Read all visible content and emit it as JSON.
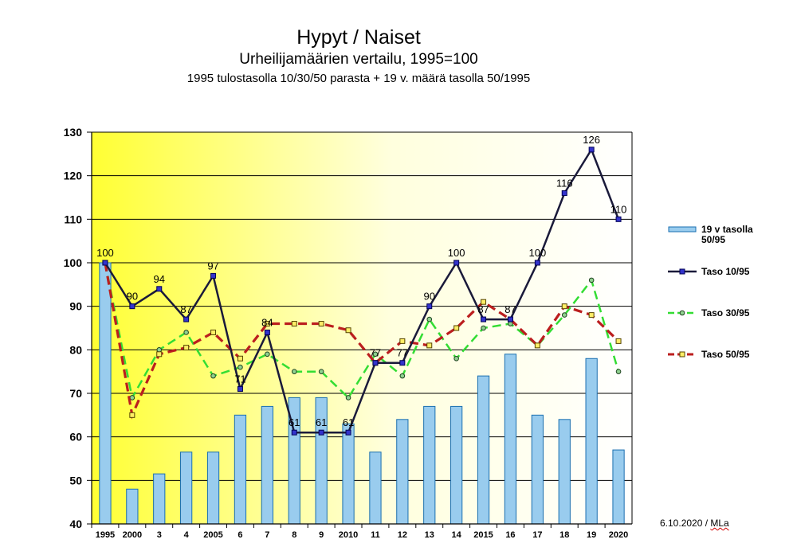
{
  "header": {
    "title": "Hypyt / Naiset",
    "subtitle": "Urheilijamäärien vertailu, 1995=100",
    "subtitle2": "1995 tulostasolla 10/30/50 parasta + 19 v. määrä tasolla 50/1995"
  },
  "footer": {
    "date": "6.10.2020 / ",
    "author": "MLa"
  },
  "colors": {
    "bar_fill": "#99ccee",
    "bar_stroke": "#1a6fb0",
    "taso10": "#1a1a3a",
    "taso10_marker": "#3333cc",
    "taso30": "#33dd33",
    "taso30_marker": "#8fd18f",
    "taso50": "#bb1e1e",
    "taso50_marker": "#ffee66"
  },
  "chart_data": {
    "type": "bar",
    "title": "Hypyt / Naiset",
    "categories": [
      "1995",
      "2000",
      "3",
      "4",
      "2005",
      "6",
      "7",
      "8",
      "9",
      "2010",
      "11",
      "12",
      "13",
      "14",
      "2015",
      "16",
      "17",
      "18",
      "19",
      "2020"
    ],
    "ylim": [
      40,
      130
    ],
    "yticks": [
      40,
      50,
      60,
      70,
      80,
      90,
      100,
      110,
      120,
      130
    ],
    "grid": true,
    "legend_position": "right",
    "series": [
      {
        "name": "19 v tasolla 50/95",
        "type": "bar",
        "values": [
          100,
          48,
          51.5,
          56.5,
          56.5,
          65,
          67,
          69,
          69,
          63,
          56.5,
          64,
          67,
          67,
          74,
          79,
          65,
          64,
          78,
          57
        ]
      },
      {
        "name": "Taso 10/95",
        "type": "line",
        "style": "solid",
        "values": [
          100,
          90,
          94,
          87,
          97,
          71,
          84,
          61,
          61,
          61,
          77,
          77,
          90,
          100,
          87,
          87,
          100,
          116,
          126,
          110
        ],
        "labels": [
          "100",
          "90",
          "94",
          "87",
          "97",
          "71",
          "84",
          "61",
          "61",
          "61",
          "77",
          "77",
          "90",
          "100",
          "87",
          "87",
          "100",
          "116",
          "126",
          "110"
        ]
      },
      {
        "name": "Taso 30/95",
        "type": "line",
        "style": "dashed",
        "values": [
          100,
          69,
          80,
          84,
          74,
          76,
          79,
          75,
          75,
          69,
          79,
          74,
          87,
          78,
          85,
          86,
          81,
          88,
          96,
          75
        ]
      },
      {
        "name": "Taso 50/95",
        "type": "line",
        "style": "dashed",
        "values": [
          100,
          65,
          79,
          80.5,
          84,
          78,
          86,
          86,
          86,
          84.5,
          77,
          82,
          81,
          85,
          91,
          87,
          81,
          90,
          88,
          82
        ]
      }
    ]
  }
}
